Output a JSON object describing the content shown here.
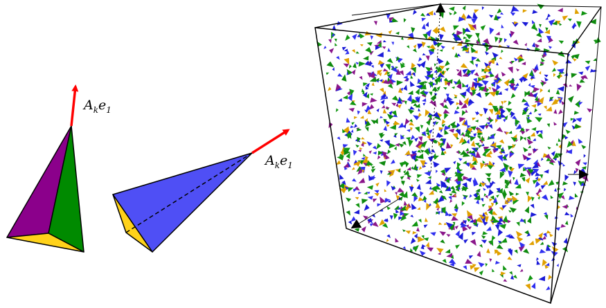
{
  "labels": {
    "left_vector": {
      "base": "A",
      "sub": "k",
      "tail": "e",
      "tail_sub": "1"
    },
    "right_vector": {
      "base": "A",
      "sub": "k",
      "tail": "e",
      "tail_sub": "1"
    }
  },
  "colors": {
    "purple": "#8B008B",
    "green": "#008A00",
    "yellow": "#FFD21A",
    "blue": "#4F4FF5",
    "arrow_red": "#FF0000",
    "outline": "#000000",
    "box_edge": "#000000"
  },
  "particle_colors": [
    "#1b1bd8",
    "#0e8a0e",
    "#8a168a",
    "#e0a000",
    "#2f2ff0",
    "#119511"
  ],
  "particle_count": 1500
}
